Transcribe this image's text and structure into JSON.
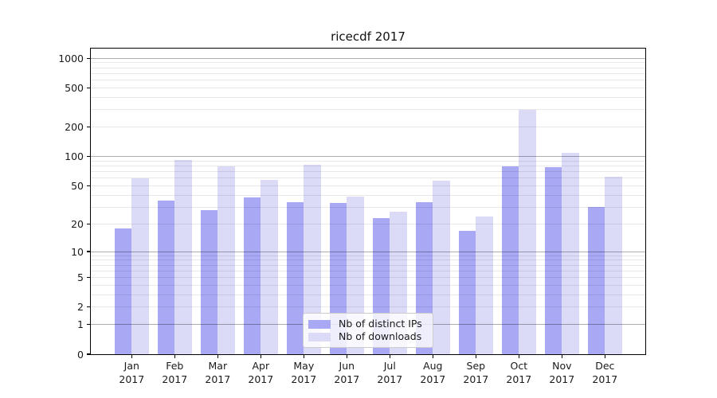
{
  "chart_data": {
    "type": "bar",
    "title": "ricecdf 2017",
    "x_categories": [
      {
        "month": "Jan",
        "year": "2017"
      },
      {
        "month": "Feb",
        "year": "2017"
      },
      {
        "month": "Mar",
        "year": "2017"
      },
      {
        "month": "Apr",
        "year": "2017"
      },
      {
        "month": "May",
        "year": "2017"
      },
      {
        "month": "Jun",
        "year": "2017"
      },
      {
        "month": "Jul",
        "year": "2017"
      },
      {
        "month": "Aug",
        "year": "2017"
      },
      {
        "month": "Sep",
        "year": "2017"
      },
      {
        "month": "Oct",
        "year": "2017"
      },
      {
        "month": "Nov",
        "year": "2017"
      },
      {
        "month": "Dec",
        "year": "2017"
      }
    ],
    "series": [
      {
        "name": "Nb of distinct IPs",
        "color": "#a8a8f5",
        "values": [
          18,
          35,
          28,
          38,
          34,
          33,
          23,
          34,
          17,
          80,
          78,
          30
        ]
      },
      {
        "name": "Nb of downloads",
        "color": "#dbdbf8",
        "values": [
          60,
          92,
          79,
          58,
          82,
          39,
          27,
          56,
          24,
          300,
          110,
          62
        ]
      }
    ],
    "yscale": "log1p",
    "yticks": [
      0,
      1,
      2,
      5,
      10,
      20,
      50,
      100,
      200,
      500,
      1000
    ],
    "ylim": [
      0,
      1258
    ],
    "xlabel": "",
    "ylabel": "",
    "grid": {
      "enabled": true,
      "major_values": [
        1,
        10,
        100,
        1000
      ],
      "major_color": "rgba(0,0,0,0.32)",
      "minor_color": "rgba(0,0,0,0.09)"
    },
    "legend_position": "lower center"
  }
}
